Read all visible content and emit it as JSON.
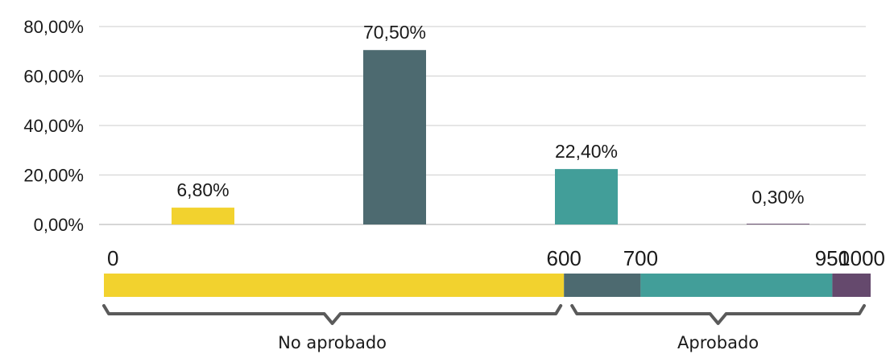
{
  "chart_data": {
    "type": "bar",
    "categories": [
      "0–600",
      "600–700",
      "700–950",
      "950–1000"
    ],
    "values": [
      6.8,
      70.5,
      22.4,
      0.3
    ],
    "value_labels": [
      "6,80%",
      "70,50%",
      "22,40%",
      "0,30%"
    ],
    "ylim": [
      0,
      80
    ],
    "y_ticks": [
      0,
      20,
      40,
      60,
      80
    ],
    "y_tick_labels": [
      "0,00%",
      "20,00%",
      "40,00%",
      "60,00%",
      "80,00%"
    ],
    "grid": true,
    "colors": [
      "#f2d22e",
      "#4d6a70",
      "#429e99",
      "#65496d"
    ]
  },
  "scale_bar": {
    "min": 0,
    "max": 1000,
    "breakpoints": [
      0,
      600,
      700,
      950,
      1000
    ],
    "labels": [
      "0",
      "600",
      "700",
      "950",
      "1000"
    ],
    "colors": [
      "#f2d22e",
      "#4d6a70",
      "#429e99",
      "#65496d"
    ]
  },
  "groups": [
    {
      "label": "No aprobado",
      "from": 0,
      "to": 600
    },
    {
      "label": "Aprobado",
      "from": 600,
      "to": 1000
    }
  ]
}
